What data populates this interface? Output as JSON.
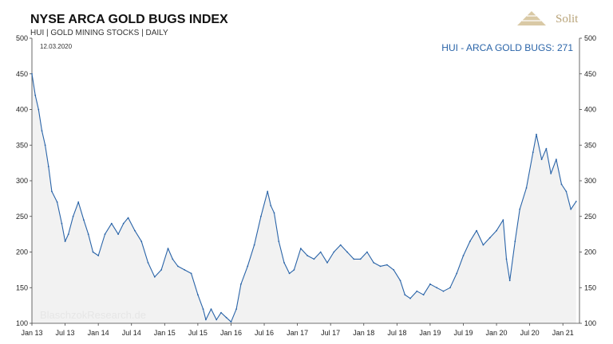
{
  "header": {
    "title": "NYSE ARCA GOLD BUGS INDEX",
    "subtitle": "HUI | GOLD MINING STOCKS | DAILY",
    "date": "12.03.2020"
  },
  "logo": {
    "text": "Solit",
    "color": "#b9a47a"
  },
  "watermark": "BlaschzokResearch.de",
  "chart_data": {
    "type": "line",
    "title": "NYSE ARCA GOLD BUGS INDEX",
    "subtitle": "HUI | GOLD MINING STOCKS | DAILY",
    "annotation": "HUI - ARCA GOLD BUGS: 271",
    "ylim": [
      100,
      500
    ],
    "y_ticks": [
      100,
      150,
      200,
      250,
      300,
      350,
      400,
      450,
      500
    ],
    "y_axes": "left-and-right",
    "grid": false,
    "area_fill": true,
    "colors": {
      "line": "#2a64a8",
      "area": "#f2f2f2",
      "annotation": "#2a64a8"
    },
    "x_ticks": [
      "Jan 13",
      "Jul 13",
      "Jan 14",
      "Jul 14",
      "Jan 15",
      "Jul 15",
      "Jan 16",
      "Jul 16",
      "Jan 17",
      "Jul 17",
      "Jan 18",
      "Jul 18",
      "Jan 19",
      "Jul 19",
      "Jan 20",
      "Jul 20",
      "Jan 21"
    ],
    "x_range": [
      2013.0,
      2021.25
    ],
    "series": [
      {
        "values": [
          [
            2013.0,
            450
          ],
          [
            2013.05,
            420
          ],
          [
            2013.1,
            400
          ],
          [
            2013.15,
            370
          ],
          [
            2013.2,
            350
          ],
          [
            2013.25,
            320
          ],
          [
            2013.3,
            285
          ],
          [
            2013.38,
            270
          ],
          [
            2013.45,
            240
          ],
          [
            2013.5,
            215
          ],
          [
            2013.55,
            225
          ],
          [
            2013.62,
            250
          ],
          [
            2013.7,
            270
          ],
          [
            2013.78,
            245
          ],
          [
            2013.85,
            225
          ],
          [
            2013.92,
            200
          ],
          [
            2014.0,
            195
          ],
          [
            2014.1,
            225
          ],
          [
            2014.2,
            240
          ],
          [
            2014.3,
            225
          ],
          [
            2014.38,
            240
          ],
          [
            2014.45,
            248
          ],
          [
            2014.55,
            230
          ],
          [
            2014.65,
            215
          ],
          [
            2014.75,
            185
          ],
          [
            2014.85,
            165
          ],
          [
            2014.95,
            175
          ],
          [
            2015.05,
            205
          ],
          [
            2015.12,
            190
          ],
          [
            2015.2,
            180
          ],
          [
            2015.3,
            175
          ],
          [
            2015.4,
            170
          ],
          [
            2015.5,
            140
          ],
          [
            2015.58,
            120
          ],
          [
            2015.62,
            105
          ],
          [
            2015.7,
            120
          ],
          [
            2015.78,
            105
          ],
          [
            2015.85,
            115
          ],
          [
            2015.93,
            108
          ],
          [
            2016.0,
            102
          ],
          [
            2016.08,
            120
          ],
          [
            2016.15,
            155
          ],
          [
            2016.25,
            180
          ],
          [
            2016.35,
            210
          ],
          [
            2016.45,
            250
          ],
          [
            2016.55,
            285
          ],
          [
            2016.6,
            265
          ],
          [
            2016.65,
            255
          ],
          [
            2016.72,
            215
          ],
          [
            2016.8,
            185
          ],
          [
            2016.88,
            170
          ],
          [
            2016.95,
            175
          ],
          [
            2017.05,
            205
          ],
          [
            2017.15,
            195
          ],
          [
            2017.25,
            190
          ],
          [
            2017.35,
            200
          ],
          [
            2017.45,
            185
          ],
          [
            2017.55,
            200
          ],
          [
            2017.65,
            210
          ],
          [
            2017.75,
            200
          ],
          [
            2017.85,
            190
          ],
          [
            2017.95,
            190
          ],
          [
            2018.05,
            200
          ],
          [
            2018.15,
            185
          ],
          [
            2018.25,
            180
          ],
          [
            2018.35,
            182
          ],
          [
            2018.45,
            175
          ],
          [
            2018.55,
            160
          ],
          [
            2018.62,
            140
          ],
          [
            2018.7,
            135
          ],
          [
            2018.8,
            145
          ],
          [
            2018.9,
            140
          ],
          [
            2019.0,
            155
          ],
          [
            2019.1,
            150
          ],
          [
            2019.2,
            145
          ],
          [
            2019.3,
            150
          ],
          [
            2019.4,
            170
          ],
          [
            2019.5,
            195
          ],
          [
            2019.6,
            215
          ],
          [
            2019.7,
            230
          ],
          [
            2019.8,
            210
          ],
          [
            2019.9,
            220
          ],
          [
            2020.0,
            230
          ],
          [
            2020.1,
            245
          ],
          [
            2020.15,
            190
          ],
          [
            2020.2,
            160
          ],
          [
            2020.28,
            215
          ],
          [
            2020.35,
            260
          ],
          [
            2020.45,
            290
          ],
          [
            2020.55,
            340
          ],
          [
            2020.6,
            365
          ],
          [
            2020.68,
            330
          ],
          [
            2020.75,
            345
          ],
          [
            2020.82,
            310
          ],
          [
            2020.9,
            330
          ],
          [
            2020.98,
            295
          ],
          [
            2021.05,
            285
          ],
          [
            2021.12,
            260
          ],
          [
            2021.2,
            271
          ]
        ]
      }
    ]
  }
}
